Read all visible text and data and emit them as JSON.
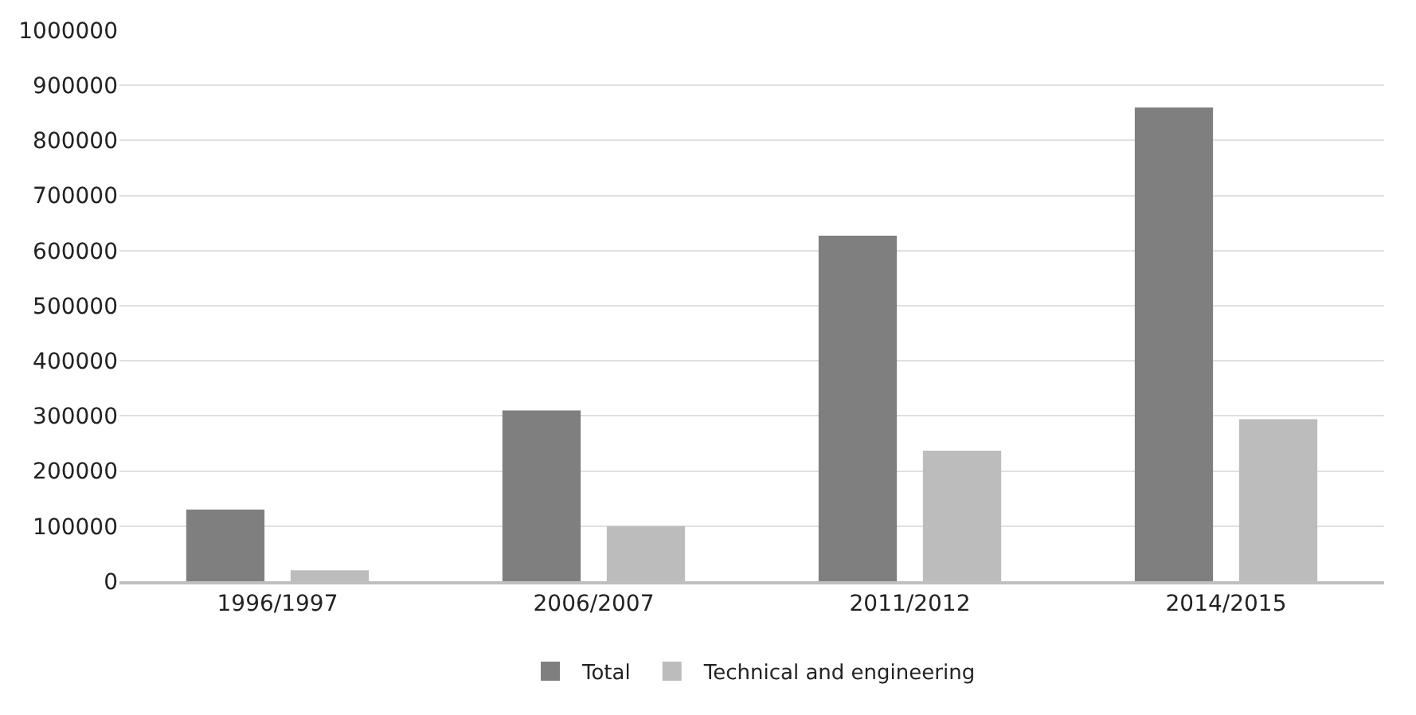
{
  "chart_data": {
    "type": "bar",
    "categories": [
      "1996/1997",
      "2006/2007",
      "2011/2012",
      "2014/2015"
    ],
    "series": [
      {
        "name": "Total",
        "color": "#7f7f7f",
        "values": [
          130000,
          310000,
          627000,
          860000
        ]
      },
      {
        "name": "Technical and engineering",
        "color": "#bcbcbc",
        "values": [
          20000,
          100000,
          237000,
          294000
        ]
      }
    ],
    "ylim": [
      0,
      1000000
    ],
    "yticks": [
      0,
      100000,
      200000,
      300000,
      400000,
      500000,
      600000,
      700000,
      800000,
      900000,
      1000000
    ],
    "grid": "y",
    "legend": "bottom"
  }
}
